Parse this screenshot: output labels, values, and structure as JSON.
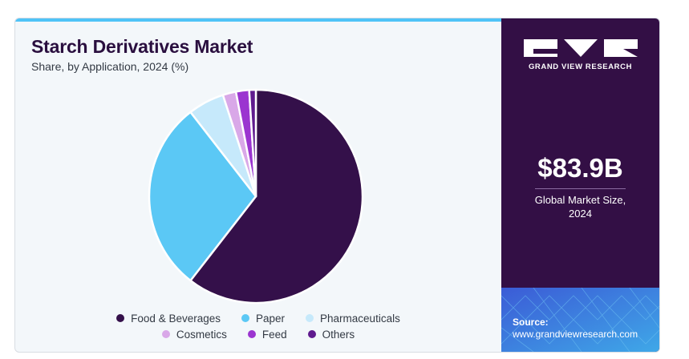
{
  "brand": {
    "name": "GRAND VIEW RESEARCH",
    "panel_color": "#330f45"
  },
  "metric": {
    "value": "$83.9B",
    "label_line1": "Global Market Size,",
    "label_line2": "2024"
  },
  "source": {
    "label": "Source:",
    "url": "www.grandviewresearch.com"
  },
  "chart_data": {
    "type": "pie",
    "title": "Starch Derivatives Market",
    "subtitle": "Share, by Application, 2024 (%)",
    "legend_position": "bottom",
    "slices": [
      {
        "label": "Food & Beverages",
        "value": 60.5,
        "color": "#34104a"
      },
      {
        "label": "Paper",
        "value": 29.0,
        "color": "#5bc8f5"
      },
      {
        "label": "Pharmaceuticals",
        "value": 5.5,
        "color": "#c6e9fb"
      },
      {
        "label": "Cosmetics",
        "value": 2.0,
        "color": "#d9a8e8"
      },
      {
        "label": "Feed",
        "value": 2.0,
        "color": "#9b35d0"
      },
      {
        "label": "Others",
        "value": 1.0,
        "color": "#5f1a8e"
      }
    ]
  }
}
